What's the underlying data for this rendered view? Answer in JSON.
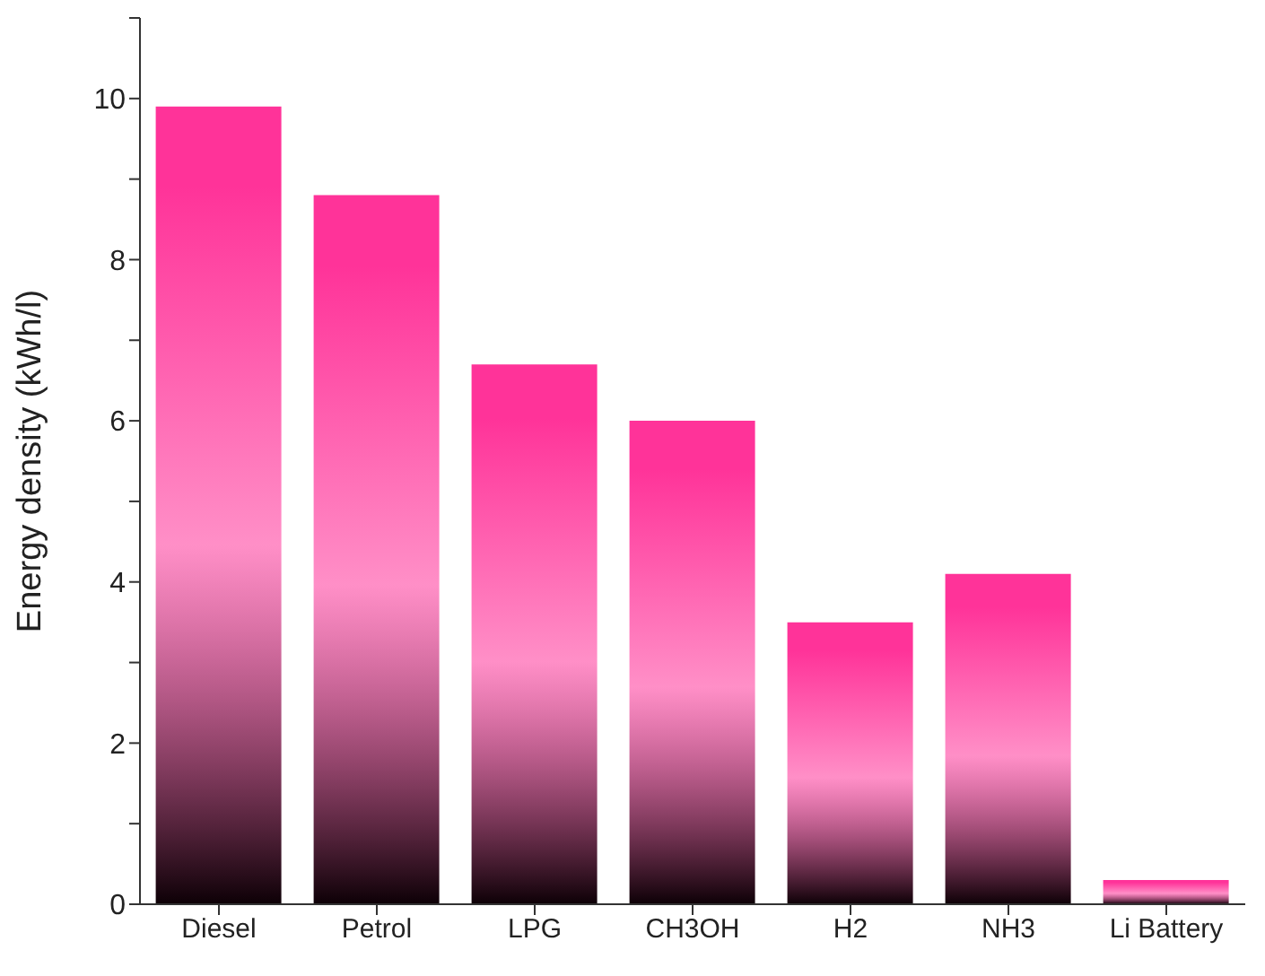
{
  "chart_data": {
    "type": "bar",
    "ylabel": "Energy density (kWh/l)",
    "categories": [
      "Diesel",
      "Petrol",
      "LPG",
      "CH3OH",
      "H2",
      "NH3",
      "Li Battery"
    ],
    "values": [
      9.9,
      8.8,
      6.7,
      6.0,
      3.5,
      4.1,
      0.3
    ],
    "color": "#ff3399",
    "ylim": [
      0,
      11
    ],
    "yticks": [
      0,
      {
        "value": 1,
        "label": null
      },
      2,
      {
        "value": 3,
        "label": null
      },
      4,
      {
        "value": 5,
        "label": null
      },
      6,
      {
        "value": 7,
        "label": null
      },
      8,
      {
        "value": 9,
        "label": null
      },
      10,
      {
        "value": 11,
        "label": null
      }
    ],
    "grid": false,
    "legend": false
  }
}
